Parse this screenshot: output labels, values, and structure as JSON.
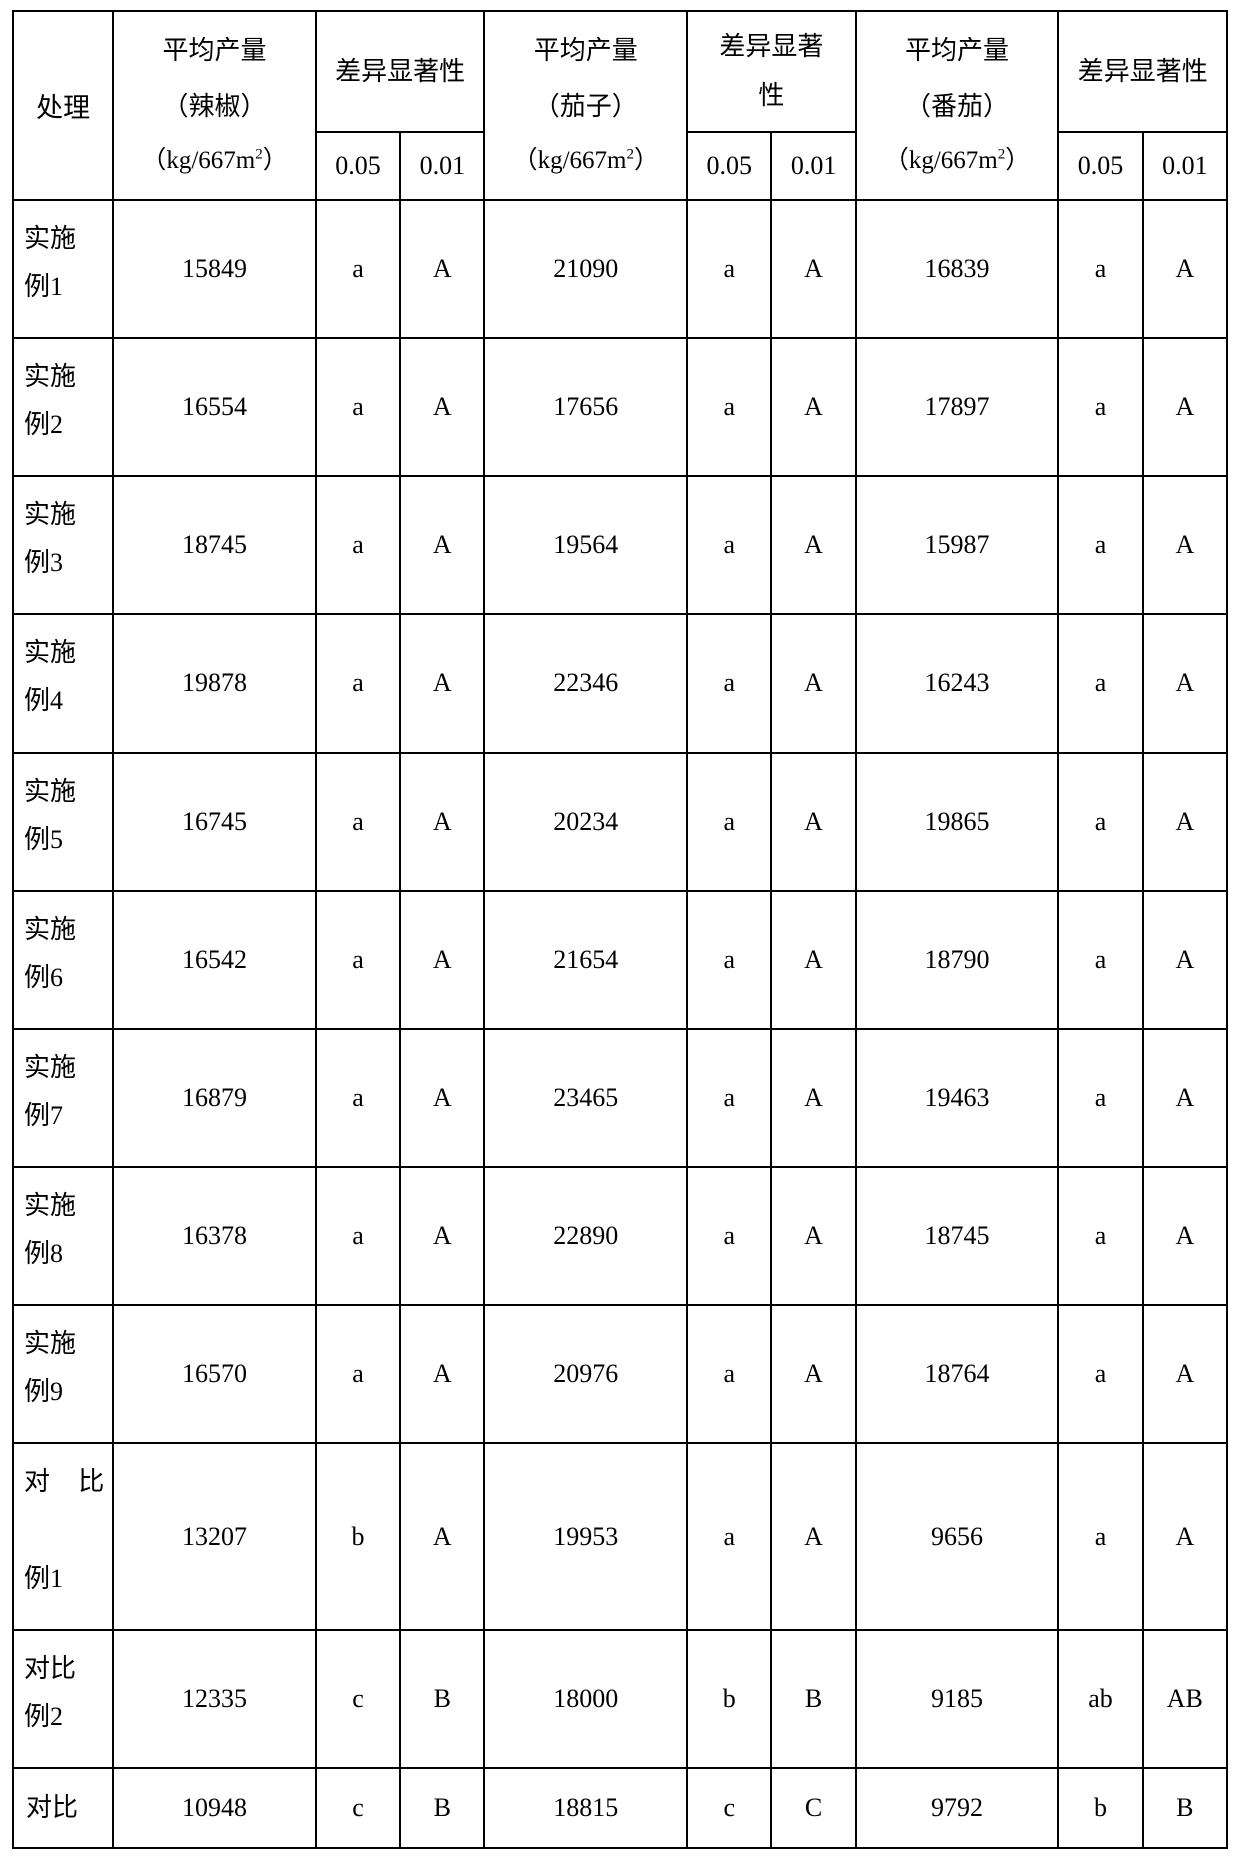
{
  "table": {
    "type": "table",
    "background_color": "#ffffff",
    "border_color": "#000000",
    "text_color": "#000000",
    "font_family": "SimSun",
    "header_fontsize": 26,
    "body_fontsize": 26,
    "columns": {
      "treatment": "处理",
      "yield_pepper_l1": "平均产量",
      "yield_pepper_l2": "（辣椒）",
      "yield_eggplant_l1": "平均产量",
      "yield_eggplant_l2": "（茄子）",
      "yield_tomato_l1": "平均产量",
      "yield_tomato_l2": "（番茄）",
      "unit_prefix": "（kg/667m",
      "unit_sup": "2",
      "unit_suffix": "）",
      "sig_group_l1": "差异显著性",
      "sig_group_short_l1": "差异显著",
      "sig_group_short_l2": "性",
      "sig_005": "0.05",
      "sig_001": "0.01"
    },
    "rows": [
      {
        "treat_l1": "实施",
        "treat_l2": "例1",
        "pepper": "15849",
        "p05": "a",
        "p01": "A",
        "egg": "21090",
        "e05": "a",
        "e01": "A",
        "tom": "16839",
        "t05": "a",
        "t01": "A"
      },
      {
        "treat_l1": "实施",
        "treat_l2": "例2",
        "pepper": "16554",
        "p05": "a",
        "p01": "A",
        "egg": "17656",
        "e05": "a",
        "e01": "A",
        "tom": "17897",
        "t05": "a",
        "t01": "A"
      },
      {
        "treat_l1": "实施",
        "treat_l2": "例3",
        "pepper": "18745",
        "p05": "a",
        "p01": "A",
        "egg": "19564",
        "e05": "a",
        "e01": "A",
        "tom": "15987",
        "t05": "a",
        "t01": "A"
      },
      {
        "treat_l1": "实施",
        "treat_l2": "例4",
        "pepper": "19878",
        "p05": "a",
        "p01": "A",
        "egg": "22346",
        "e05": "a",
        "e01": "A",
        "tom": "16243",
        "t05": "a",
        "t01": "A"
      },
      {
        "treat_l1": "实施",
        "treat_l2": "例5",
        "pepper": "16745",
        "p05": "a",
        "p01": "A",
        "egg": "20234",
        "e05": "a",
        "e01": "A",
        "tom": "19865",
        "t05": "a",
        "t01": "A"
      },
      {
        "treat_l1": "实施",
        "treat_l2": "例6",
        "pepper": "16542",
        "p05": "a",
        "p01": "A",
        "egg": "21654",
        "e05": "a",
        "e01": "A",
        "tom": "18790",
        "t05": "a",
        "t01": "A"
      },
      {
        "treat_l1": "实施",
        "treat_l2": "例7",
        "pepper": "16879",
        "p05": "a",
        "p01": "A",
        "egg": "23465",
        "e05": "a",
        "e01": "A",
        "tom": "19463",
        "t05": "a",
        "t01": "A"
      },
      {
        "treat_l1": "实施",
        "treat_l2": "例8",
        "pepper": "16378",
        "p05": "a",
        "p01": "A",
        "egg": "22890",
        "e05": "a",
        "e01": "A",
        "tom": "18745",
        "t05": "a",
        "t01": "A"
      },
      {
        "treat_l1": "实施",
        "treat_l2": "例9",
        "pepper": "16570",
        "p05": "a",
        "p01": "A",
        "egg": "20976",
        "e05": "a",
        "e01": "A",
        "tom": "18764",
        "t05": "a",
        "t01": "A"
      },
      {
        "treat_l1": "对 比",
        "treat_l2": "例1",
        "pepper": "13207",
        "p05": "b",
        "p01": "A",
        "egg": "19953",
        "e05": "a",
        "e01": "A",
        "tom": "9656",
        "t05": "a",
        "t01": "A",
        "justify": true
      },
      {
        "treat_l1": "对比",
        "treat_l2": "例2",
        "pepper": "12335",
        "p05": "c",
        "p01": "B",
        "egg": "18000",
        "e05": "b",
        "e01": "B",
        "tom": "9185",
        "t05": "ab",
        "t01": "AB"
      },
      {
        "treat_l1": "对比",
        "pepper": "10948",
        "p05": "c",
        "p01": "B",
        "egg": "18815",
        "e05": "c",
        "e01": "C",
        "tom": "9792",
        "t05": "b",
        "t01": "B",
        "last": true
      }
    ]
  }
}
